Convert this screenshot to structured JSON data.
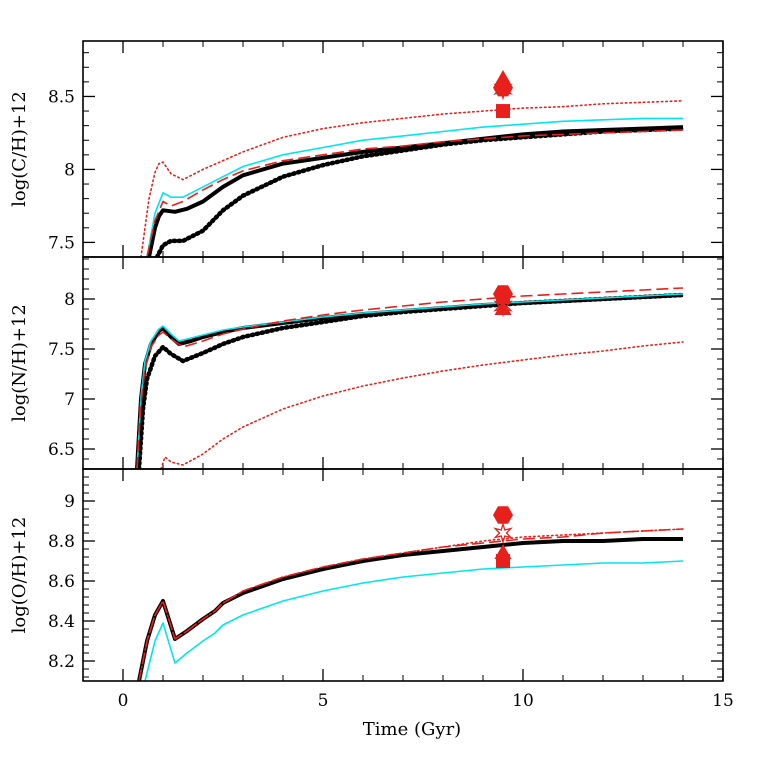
{
  "chart_data": {
    "type": "line",
    "xlabel": "Time (Gyr)",
    "xlim": [
      -1,
      15
    ],
    "xticks": [
      0,
      5,
      10,
      15
    ],
    "xtick_labels": [
      "0",
      "5",
      "10",
      "15"
    ],
    "panels": [
      {
        "ylabel": "log(C/H)+12",
        "ylim": [
          7.4,
          8.88
        ],
        "yticks": [
          7.5,
          8,
          8.5
        ],
        "ytick_labels": [
          "7.5",
          "8",
          "8.5"
        ],
        "series": [
          {
            "color": "#000000",
            "style": "solid-thick",
            "x": [
              0.65,
              0.8,
              0.9,
              1.0,
              1.3,
              1.6,
              2.0,
              2.5,
              3,
              4,
              5,
              6,
              7,
              8,
              9,
              10,
              11,
              12,
              13,
              14
            ],
            "y": [
              7.4,
              7.6,
              7.68,
              7.72,
              7.71,
              7.73,
              7.78,
              7.88,
              7.96,
              8.04,
              8.08,
              8.12,
              8.15,
              8.18,
              8.21,
              8.24,
              8.26,
              8.27,
              8.28,
              8.29
            ]
          },
          {
            "color": "#000000",
            "style": "dotted-thick",
            "x": [
              0.85,
              1.0,
              1.2,
              1.5,
              2.0,
              2.5,
              3,
              4,
              5,
              6,
              7,
              8,
              9,
              10,
              11,
              12,
              13,
              14
            ],
            "y": [
              7.4,
              7.48,
              7.51,
              7.51,
              7.58,
              7.72,
              7.82,
              7.95,
              8.03,
              8.09,
              8.13,
              8.17,
              8.2,
              8.22,
              8.24,
              8.26,
              8.27,
              8.28
            ]
          },
          {
            "color": "#00e5ee",
            "style": "solid-thin",
            "x": [
              0.6,
              0.8,
              1.0,
              1.2,
              1.5,
              2.0,
              2.5,
              3,
              4,
              5,
              6,
              7,
              8,
              9,
              10,
              11,
              12,
              13,
              14
            ],
            "y": [
              7.4,
              7.7,
              7.84,
              7.81,
              7.81,
              7.88,
              7.95,
              8.02,
              8.1,
              8.15,
              8.2,
              8.23,
              8.26,
              8.29,
              8.31,
              8.33,
              8.34,
              8.35,
              8.35
            ]
          },
          {
            "color": "#e8201c",
            "style": "dashed",
            "x": [
              0.6,
              0.8,
              1.0,
              1.2,
              1.5,
              2.0,
              2.5,
              3,
              4,
              5,
              6,
              7,
              8,
              9,
              10,
              11,
              12,
              13,
              14
            ],
            "y": [
              7.4,
              7.65,
              7.78,
              7.75,
              7.78,
              7.86,
              7.93,
              7.99,
              8.06,
              8.1,
              8.14,
              8.16,
              8.19,
              8.21,
              8.23,
              8.24,
              8.25,
              8.26,
              8.27
            ]
          },
          {
            "color": "#e8201c",
            "style": "dotted-thin",
            "x": [
              0.45,
              0.65,
              0.8,
              0.9,
              1.0,
              1.2,
              1.5,
              2.0,
              3,
              4,
              5,
              6,
              7,
              8,
              9,
              10,
              11,
              12,
              13,
              14
            ],
            "y": [
              7.4,
              7.8,
              7.98,
              8.04,
              8.05,
              7.97,
              7.93,
              8.0,
              8.12,
              8.22,
              8.28,
              8.32,
              8.35,
              8.38,
              8.4,
              8.42,
              8.43,
              8.45,
              8.46,
              8.47
            ]
          }
        ],
        "markers": [
          {
            "shape": "triangle",
            "x": 9.5,
            "y": 8.62
          },
          {
            "shape": "star",
            "x": 9.5,
            "y": 8.55
          },
          {
            "shape": "hexagon",
            "x": 9.5,
            "y": 8.56
          },
          {
            "shape": "square",
            "x": 9.5,
            "y": 8.4
          }
        ]
      },
      {
        "ylabel": "log(N/H)+12",
        "ylim": [
          6.3,
          8.42
        ],
        "yticks": [
          6.5,
          7,
          7.5,
          8
        ],
        "ytick_labels": [
          "6.5",
          "7",
          "7.5",
          "8"
        ],
        "series": [
          {
            "color": "#000000",
            "style": "solid-thick",
            "x": [
              0.35,
              0.45,
              0.55,
              0.7,
              0.9,
              1.0,
              1.2,
              1.4,
              1.7,
              2.0,
              2.5,
              3,
              4,
              5,
              6,
              7,
              8,
              9,
              10,
              11,
              12,
              13,
              14
            ],
            "y": [
              6.3,
              7.0,
              7.35,
              7.55,
              7.68,
              7.71,
              7.62,
              7.55,
              7.58,
              7.62,
              7.67,
              7.71,
              7.76,
              7.81,
              7.85,
              7.88,
              7.91,
              7.94,
              7.96,
              7.98,
              8.0,
              8.02,
              8.04
            ]
          },
          {
            "color": "#000000",
            "style": "dotted-thick",
            "x": [
              0.4,
              0.5,
              0.6,
              0.8,
              1.0,
              1.2,
              1.5,
              2.0,
              2.5,
              3,
              4,
              5,
              6,
              7,
              8,
              9,
              10,
              11,
              12,
              13,
              14
            ],
            "y": [
              6.3,
              6.9,
              7.2,
              7.43,
              7.52,
              7.45,
              7.38,
              7.46,
              7.55,
              7.62,
              7.71,
              7.77,
              7.83,
              7.87,
              7.9,
              7.93,
              7.96,
              7.98,
              8.0,
              8.02,
              8.04
            ]
          },
          {
            "color": "#00e5ee",
            "style": "solid-thin",
            "x": [
              0.35,
              0.45,
              0.55,
              0.7,
              0.9,
              1.0,
              1.2,
              1.4,
              1.7,
              2.0,
              2.5,
              3,
              4,
              5,
              6,
              7,
              8,
              9,
              10,
              11,
              12,
              13,
              14
            ],
            "y": [
              6.3,
              7.02,
              7.38,
              7.58,
              7.7,
              7.73,
              7.65,
              7.58,
              7.61,
              7.64,
              7.69,
              7.72,
              7.77,
              7.82,
              7.86,
              7.89,
              7.92,
              7.95,
              7.97,
              7.99,
              8.01,
              8.03,
              8.05
            ]
          },
          {
            "color": "#e8201c",
            "style": "dashed",
            "x": [
              0.35,
              0.45,
              0.55,
              0.7,
              0.9,
              1.0,
              1.2,
              1.5,
              2.0,
              2.5,
              3,
              4,
              5,
              6,
              7,
              8,
              9,
              10,
              11,
              12,
              13,
              14
            ],
            "y": [
              6.3,
              6.95,
              7.3,
              7.52,
              7.64,
              7.67,
              7.6,
              7.52,
              7.58,
              7.65,
              7.7,
              7.78,
              7.84,
              7.89,
              7.93,
              7.97,
              8.0,
              8.03,
              8.05,
              8.07,
              8.09,
              8.11
            ]
          },
          {
            "color": "#e8201c",
            "style": "dotted-thin",
            "x": [
              0.95,
              1.05,
              1.2,
              1.5,
              2.0,
              2.5,
              3,
              4,
              5,
              6,
              7,
              8,
              9,
              10,
              11,
              12,
              13,
              14
            ],
            "y": [
              6.3,
              6.42,
              6.37,
              6.34,
              6.45,
              6.6,
              6.72,
              6.9,
              7.03,
              7.13,
              7.21,
              7.28,
              7.34,
              7.39,
              7.44,
              7.48,
              7.53,
              7.57
            ]
          }
        ],
        "markers": [
          {
            "shape": "hexagon",
            "x": 9.5,
            "y": 8.05
          },
          {
            "shape": "square",
            "x": 9.5,
            "y": 8.02
          },
          {
            "shape": "star",
            "x": 9.5,
            "y": 7.93
          },
          {
            "shape": "triangle",
            "x": 9.5,
            "y": 7.9
          }
        ]
      },
      {
        "ylabel": "log(O/H)+12",
        "ylim": [
          8.1,
          9.16
        ],
        "yticks": [
          8.2,
          8.4,
          8.6,
          8.8,
          9
        ],
        "ytick_labels": [
          "8.2",
          "8.4",
          "8.6",
          "8.8",
          "9"
        ],
        "series": [
          {
            "color": "#000000",
            "style": "solid-thick",
            "x": [
              0.4,
              0.6,
              0.8,
              1.0,
              1.3,
              1.6,
              2.0,
              2.3,
              2.5,
              3,
              4,
              5,
              6,
              7,
              8,
              9,
              10,
              11,
              12,
              13,
              14
            ],
            "y": [
              8.1,
              8.3,
              8.43,
              8.5,
              8.31,
              8.35,
              8.41,
              8.45,
              8.49,
              8.54,
              8.61,
              8.66,
              8.7,
              8.73,
              8.75,
              8.77,
              8.79,
              8.8,
              8.8,
              8.81,
              8.81
            ]
          },
          {
            "color": "#e8201c",
            "style": "dashed",
            "x": [
              0.4,
              0.6,
              0.8,
              1.0,
              1.3,
              1.6,
              2.0,
              2.3,
              2.5,
              3,
              4,
              5,
              6,
              7,
              8,
              9,
              10,
              11,
              12,
              13,
              14
            ],
            "y": [
              8.1,
              8.3,
              8.43,
              8.5,
              8.31,
              8.35,
              8.41,
              8.45,
              8.49,
              8.55,
              8.62,
              8.67,
              8.71,
              8.74,
              8.77,
              8.79,
              8.81,
              8.82,
              8.84,
              8.85,
              8.86
            ]
          },
          {
            "color": "#e8201c",
            "style": "dotted-thin",
            "x": [
              0.4,
              0.6,
              0.8,
              1.0,
              1.3,
              1.6,
              2.0,
              2.3,
              2.5,
              3,
              4,
              5,
              6,
              7,
              8,
              9,
              10,
              11,
              12,
              13,
              14
            ],
            "y": [
              8.1,
              8.3,
              8.43,
              8.5,
              8.31,
              8.35,
              8.41,
              8.45,
              8.49,
              8.55,
              8.62,
              8.67,
              8.71,
              8.74,
              8.77,
              8.8,
              8.82,
              8.83,
              8.84,
              8.85,
              8.86
            ]
          },
          {
            "color": "#00e5ee",
            "style": "solid-thin",
            "x": [
              0.55,
              0.8,
              1.0,
              1.3,
              1.6,
              2.0,
              2.3,
              2.5,
              3,
              4,
              5,
              6,
              7,
              8,
              9,
              10,
              11,
              12,
              13,
              14
            ],
            "y": [
              8.1,
              8.3,
              8.39,
              8.19,
              8.24,
              8.3,
              8.34,
              8.38,
              8.43,
              8.5,
              8.55,
              8.59,
              8.62,
              8.64,
              8.66,
              8.67,
              8.68,
              8.69,
              8.69,
              8.7
            ]
          }
        ],
        "markers": [
          {
            "shape": "hexagon",
            "x": 9.5,
            "y": 8.93
          },
          {
            "shape": "star",
            "x": 9.5,
            "y": 8.84
          },
          {
            "shape": "triangle",
            "x": 9.5,
            "y": 8.74
          },
          {
            "shape": "square",
            "x": 9.5,
            "y": 8.7
          }
        ]
      }
    ]
  }
}
